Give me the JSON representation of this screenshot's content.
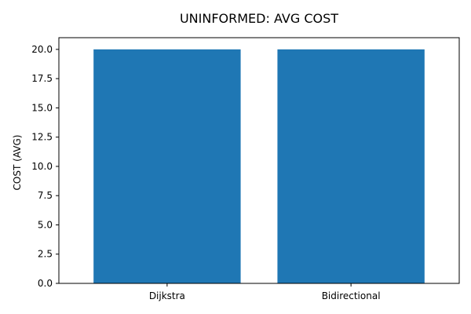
{
  "chart_data": {
    "type": "bar",
    "title": "UNINFORMED: AVG COST",
    "xlabel": "",
    "ylabel": "COST (AVG)",
    "categories": [
      "Dijkstra",
      "Bidirectional"
    ],
    "values": [
      20.0,
      20.0
    ],
    "ylim": [
      0,
      21
    ],
    "yticks": [
      "0.0",
      "2.5",
      "5.0",
      "7.5",
      "10.0",
      "12.5",
      "15.0",
      "17.5",
      "20.0"
    ],
    "bar_color": "#1f77b4",
    "grid": false,
    "legend": "none"
  }
}
